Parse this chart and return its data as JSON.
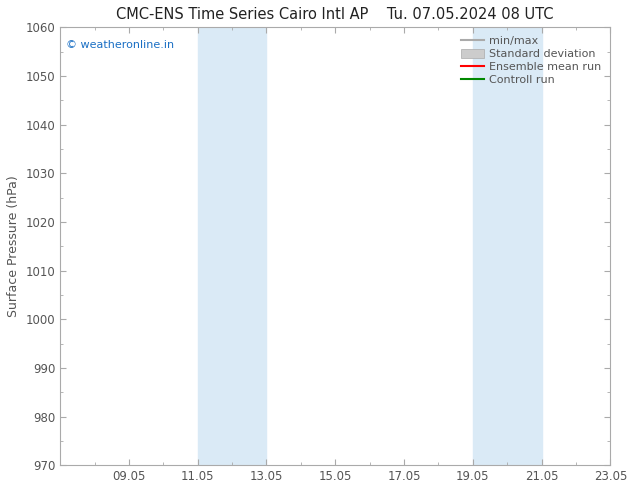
{
  "title": "CMC-ENS Time Series Cairo Intl AP",
  "title_right": "Tu. 07.05.2024 08 UTC",
  "ylabel": "Surface Pressure (hPa)",
  "ylim": [
    970,
    1060
  ],
  "yticks": [
    970,
    980,
    990,
    1000,
    1010,
    1020,
    1030,
    1040,
    1050,
    1060
  ],
  "xlim": [
    0,
    16
  ],
  "xtick_labels": [
    "09.05",
    "11.05",
    "13.05",
    "15.05",
    "17.05",
    "19.05",
    "21.05",
    "23.05"
  ],
  "xtick_positions": [
    2,
    4,
    6,
    8,
    10,
    12,
    14,
    16
  ],
  "shaded_bands": [
    {
      "x_start": 4,
      "x_end": 6,
      "color": "#daeaf6"
    },
    {
      "x_start": 12,
      "x_end": 14,
      "color": "#daeaf6"
    }
  ],
  "watermark": "© weatheronline.in",
  "watermark_color": "#1a6fc4",
  "background_color": "#ffffff",
  "spine_color": "#aaaaaa",
  "tick_color": "#555555",
  "legend_entries": [
    {
      "label": "min/max",
      "color": "#aaaaaa",
      "lw": 1.5,
      "type": "line"
    },
    {
      "label": "Standard deviation",
      "color": "#cccccc",
      "lw": 7,
      "type": "patch"
    },
    {
      "label": "Ensemble mean run",
      "color": "#ff0000",
      "lw": 1.5,
      "type": "line"
    },
    {
      "label": "Controll run",
      "color": "#008800",
      "lw": 1.5,
      "type": "line"
    }
  ],
  "figsize": [
    6.34,
    4.9
  ],
  "dpi": 100
}
